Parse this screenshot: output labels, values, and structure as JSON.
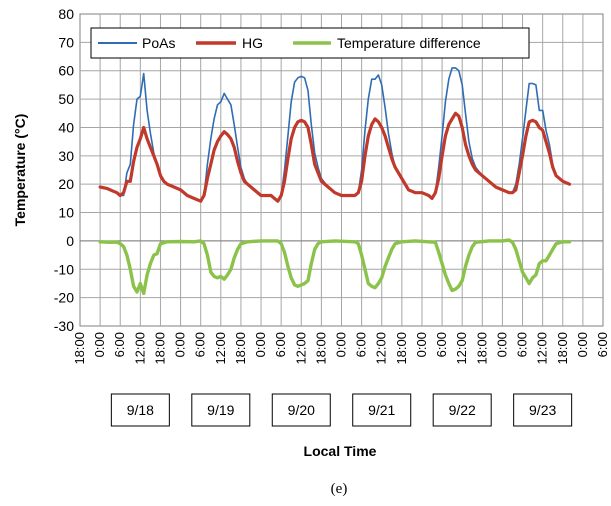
{
  "chart_data": {
    "type": "line",
    "ylabel": "Temperature (°C)",
    "xlabel": "Local Time",
    "caption": "(e)",
    "ylim": [
      -30,
      80
    ],
    "yticks": [
      80,
      70,
      60,
      50,
      40,
      30,
      20,
      10,
      0,
      -10,
      -20,
      -30
    ],
    "xlim": [
      -6,
      150
    ],
    "x_tick_hours": [
      -6,
      0,
      6,
      12,
      18,
      24,
      30,
      36,
      42,
      48,
      54,
      60,
      66,
      72,
      78,
      84,
      90,
      96,
      102,
      108,
      114,
      120,
      126,
      132,
      138,
      144,
      150
    ],
    "x_tick_labels": [
      "18:00",
      "0:00",
      "6:00",
      "12:00",
      "18:00",
      "0:00",
      "6:00",
      "12:00",
      "18:00",
      "0:00",
      "6:00",
      "12:00",
      "18:00",
      "0:00",
      "6:00",
      "12:00",
      "18:00",
      "0:00",
      "6:00",
      "12:00",
      "18:00",
      "0:00",
      "6:00",
      "12:00",
      "18:00",
      "0:00",
      "6:00"
    ],
    "dates": [
      "9/18",
      "9/19",
      "9/20",
      "9/21",
      "9/22",
      "9/23"
    ],
    "grid": true,
    "legend_position": "top",
    "series": [
      {
        "name": "PoAs",
        "color": "#2e6db4",
        "points": [
          [
            0,
            19
          ],
          [
            2,
            18.5
          ],
          [
            4,
            17.5
          ],
          [
            5,
            17
          ],
          [
            6,
            16
          ],
          [
            7,
            16
          ],
          [
            8,
            24
          ],
          [
            9,
            27
          ],
          [
            10,
            41
          ],
          [
            11,
            50
          ],
          [
            12,
            51
          ],
          [
            13,
            59
          ],
          [
            14,
            46
          ],
          [
            15,
            38
          ],
          [
            16,
            31
          ],
          [
            17,
            27
          ],
          [
            18,
            23
          ],
          [
            19,
            21
          ],
          [
            20,
            20
          ],
          [
            22,
            19
          ],
          [
            24,
            18
          ],
          [
            26,
            16
          ],
          [
            28,
            15
          ],
          [
            30,
            14
          ],
          [
            31,
            16
          ],
          [
            32,
            27
          ],
          [
            33,
            36
          ],
          [
            34,
            43
          ],
          [
            35,
            48
          ],
          [
            36,
            49
          ],
          [
            37,
            52
          ],
          [
            38,
            50
          ],
          [
            39,
            48
          ],
          [
            40,
            41
          ],
          [
            41,
            33
          ],
          [
            42,
            26
          ],
          [
            43,
            22
          ],
          [
            44,
            20
          ],
          [
            46,
            18
          ],
          [
            48,
            16
          ],
          [
            50,
            16
          ],
          [
            51,
            16
          ],
          [
            52,
            15
          ],
          [
            53,
            14
          ],
          [
            54,
            16
          ],
          [
            55,
            25
          ],
          [
            56,
            37
          ],
          [
            57,
            49
          ],
          [
            58,
            56
          ],
          [
            59,
            57.5
          ],
          [
            60,
            58
          ],
          [
            61,
            57.5
          ],
          [
            62,
            53
          ],
          [
            63,
            41
          ],
          [
            64,
            31
          ],
          [
            65,
            26
          ],
          [
            66,
            22
          ],
          [
            68,
            19
          ],
          [
            70,
            17
          ],
          [
            72,
            16
          ],
          [
            74,
            16
          ],
          [
            76,
            16
          ],
          [
            77,
            17
          ],
          [
            78,
            25
          ],
          [
            79,
            39
          ],
          [
            80,
            50
          ],
          [
            81,
            57
          ],
          [
            82,
            57
          ],
          [
            83,
            58.5
          ],
          [
            84,
            55
          ],
          [
            85,
            47
          ],
          [
            86,
            38
          ],
          [
            87,
            31
          ],
          [
            88,
            26
          ],
          [
            90,
            22
          ],
          [
            92,
            18
          ],
          [
            94,
            17
          ],
          [
            96,
            17
          ],
          [
            98,
            16
          ],
          [
            99,
            15
          ],
          [
            100,
            17
          ],
          [
            101,
            26
          ],
          [
            102,
            37
          ],
          [
            103,
            49
          ],
          [
            104,
            57
          ],
          [
            105,
            61
          ],
          [
            106,
            61
          ],
          [
            107,
            60
          ],
          [
            108,
            55
          ],
          [
            109,
            45
          ],
          [
            110,
            35
          ],
          [
            111,
            29
          ],
          [
            112,
            26
          ],
          [
            114,
            23
          ],
          [
            116,
            21
          ],
          [
            118,
            19
          ],
          [
            120,
            18
          ],
          [
            122,
            17
          ],
          [
            123,
            17
          ],
          [
            124,
            20
          ],
          [
            125,
            27
          ],
          [
            126,
            36
          ],
          [
            127,
            46
          ],
          [
            128,
            55.5
          ],
          [
            129,
            55.5
          ],
          [
            130,
            55
          ],
          [
            131,
            46
          ],
          [
            132,
            46
          ],
          [
            133,
            39
          ],
          [
            134,
            34
          ],
          [
            135,
            27
          ],
          [
            136,
            23
          ],
          [
            138,
            21
          ],
          [
            140,
            20
          ]
        ]
      },
      {
        "name": "HG",
        "color": "#c0392b",
        "points": [
          [
            0,
            19
          ],
          [
            2,
            18.5
          ],
          [
            4,
            17.5
          ],
          [
            5,
            17
          ],
          [
            6,
            16
          ],
          [
            7,
            17
          ],
          [
            8,
            21
          ],
          [
            9,
            21
          ],
          [
            10,
            28
          ],
          [
            11,
            33
          ],
          [
            12,
            36
          ],
          [
            13,
            40
          ],
          [
            14,
            36
          ],
          [
            15,
            33
          ],
          [
            16,
            30
          ],
          [
            17,
            27
          ],
          [
            18,
            23
          ],
          [
            19,
            21
          ],
          [
            20,
            20
          ],
          [
            22,
            19
          ],
          [
            24,
            18
          ],
          [
            26,
            16
          ],
          [
            28,
            15
          ],
          [
            30,
            14
          ],
          [
            31,
            16
          ],
          [
            32,
            22
          ],
          [
            33,
            27
          ],
          [
            34,
            32
          ],
          [
            35,
            35
          ],
          [
            36,
            37
          ],
          [
            37,
            38.5
          ],
          [
            38,
            37.5
          ],
          [
            39,
            36
          ],
          [
            40,
            33
          ],
          [
            41,
            28
          ],
          [
            42,
            24
          ],
          [
            43,
            21
          ],
          [
            44,
            20
          ],
          [
            46,
            18
          ],
          [
            48,
            16
          ],
          [
            50,
            16
          ],
          [
            51,
            16
          ],
          [
            52,
            15
          ],
          [
            53,
            14
          ],
          [
            54,
            16
          ],
          [
            55,
            21
          ],
          [
            56,
            29
          ],
          [
            57,
            36
          ],
          [
            58,
            40
          ],
          [
            59,
            42
          ],
          [
            60,
            42.5
          ],
          [
            61,
            42
          ],
          [
            62,
            40
          ],
          [
            63,
            34
          ],
          [
            64,
            27
          ],
          [
            65,
            24
          ],
          [
            66,
            21
          ],
          [
            68,
            19
          ],
          [
            70,
            17
          ],
          [
            72,
            16
          ],
          [
            74,
            16
          ],
          [
            76,
            16
          ],
          [
            77,
            17
          ],
          [
            78,
            21
          ],
          [
            79,
            30
          ],
          [
            80,
            37
          ],
          [
            81,
            41
          ],
          [
            82,
            43
          ],
          [
            83,
            42
          ],
          [
            84,
            40
          ],
          [
            85,
            37
          ],
          [
            86,
            33
          ],
          [
            87,
            29
          ],
          [
            88,
            26
          ],
          [
            90,
            22
          ],
          [
            92,
            18
          ],
          [
            94,
            17
          ],
          [
            96,
            17
          ],
          [
            98,
            16
          ],
          [
            99,
            15
          ],
          [
            100,
            17
          ],
          [
            101,
            22
          ],
          [
            102,
            30
          ],
          [
            103,
            37
          ],
          [
            104,
            41
          ],
          [
            105,
            43
          ],
          [
            106,
            45
          ],
          [
            107,
            44
          ],
          [
            108,
            40
          ],
          [
            109,
            34
          ],
          [
            110,
            30
          ],
          [
            111,
            27
          ],
          [
            112,
            25
          ],
          [
            114,
            23
          ],
          [
            116,
            21
          ],
          [
            118,
            19
          ],
          [
            120,
            18
          ],
          [
            122,
            17
          ],
          [
            123,
            17
          ],
          [
            124,
            18
          ],
          [
            125,
            24
          ],
          [
            126,
            30
          ],
          [
            127,
            37
          ],
          [
            128,
            42
          ],
          [
            129,
            42.5
          ],
          [
            130,
            42
          ],
          [
            131,
            40
          ],
          [
            132,
            39
          ],
          [
            133,
            35
          ],
          [
            134,
            31
          ],
          [
            135,
            26
          ],
          [
            136,
            23
          ],
          [
            138,
            21
          ],
          [
            140,
            20
          ]
        ]
      },
      {
        "name": "Temperature difference",
        "color": "#8bc34a",
        "points": [
          [
            0,
            -0.3
          ],
          [
            3,
            -0.5
          ],
          [
            5,
            -0.4
          ],
          [
            6,
            -1
          ],
          [
            7,
            -2
          ],
          [
            8,
            -5
          ],
          [
            9,
            -10
          ],
          [
            10,
            -16
          ],
          [
            11,
            -18
          ],
          [
            12,
            -15
          ],
          [
            13,
            -18.5
          ],
          [
            14,
            -12
          ],
          [
            15,
            -8
          ],
          [
            16,
            -5
          ],
          [
            17,
            -4.5
          ],
          [
            18,
            -1
          ],
          [
            20,
            -0.3
          ],
          [
            24,
            -0.2
          ],
          [
            28,
            -0.3
          ],
          [
            30,
            0
          ],
          [
            31,
            -1
          ],
          [
            32,
            -5
          ],
          [
            33,
            -11
          ],
          [
            34,
            -12.5
          ],
          [
            35,
            -13
          ],
          [
            36,
            -12.5
          ],
          [
            37,
            -13.5
          ],
          [
            38,
            -12
          ],
          [
            39,
            -10
          ],
          [
            40,
            -6
          ],
          [
            41,
            -3
          ],
          [
            42,
            -1
          ],
          [
            44,
            -0.3
          ],
          [
            48,
            0
          ],
          [
            53,
            0
          ],
          [
            54,
            -1
          ],
          [
            55,
            -4
          ],
          [
            56,
            -9
          ],
          [
            57,
            -13
          ],
          [
            58,
            -15.5
          ],
          [
            59,
            -16
          ],
          [
            60,
            -15.5
          ],
          [
            61,
            -15
          ],
          [
            62,
            -14
          ],
          [
            63,
            -8
          ],
          [
            64,
            -3
          ],
          [
            65,
            -1
          ],
          [
            66,
            -0.3
          ],
          [
            70,
            0
          ],
          [
            76,
            -0.3
          ],
          [
            77,
            -1
          ],
          [
            78,
            -5
          ],
          [
            79,
            -10
          ],
          [
            80,
            -15
          ],
          [
            81,
            -16
          ],
          [
            82,
            -16.5
          ],
          [
            83,
            -15
          ],
          [
            84,
            -13
          ],
          [
            85,
            -9
          ],
          [
            86,
            -6
          ],
          [
            87,
            -3
          ],
          [
            88,
            -1
          ],
          [
            90,
            -0.3
          ],
          [
            94,
            0
          ],
          [
            98,
            -0.3
          ],
          [
            100,
            -0.5
          ],
          [
            101,
            -4
          ],
          [
            102,
            -8
          ],
          [
            103,
            -12
          ],
          [
            104,
            -15
          ],
          [
            105,
            -17.5
          ],
          [
            106,
            -17
          ],
          [
            107,
            -16
          ],
          [
            108,
            -14
          ],
          [
            109,
            -9
          ],
          [
            110,
            -5
          ],
          [
            111,
            -2
          ],
          [
            112,
            -0.5
          ],
          [
            116,
            0
          ],
          [
            120,
            0
          ],
          [
            122,
            0.3
          ],
          [
            123,
            -0.5
          ],
          [
            124,
            -3
          ],
          [
            125,
            -7
          ],
          [
            126,
            -11
          ],
          [
            127,
            -13
          ],
          [
            128,
            -15
          ],
          [
            129,
            -13
          ],
          [
            130,
            -12
          ],
          [
            131,
            -8
          ],
          [
            132,
            -7
          ],
          [
            133,
            -7
          ],
          [
            134,
            -5
          ],
          [
            135,
            -3
          ],
          [
            136,
            -1
          ],
          [
            138,
            -0.3
          ],
          [
            140,
            -0.3
          ]
        ]
      }
    ]
  }
}
